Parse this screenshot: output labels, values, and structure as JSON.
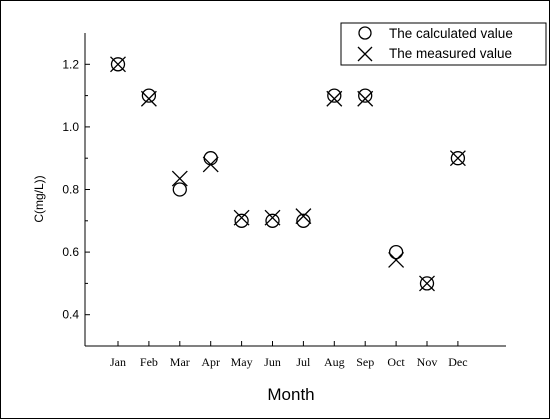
{
  "chart_data": {
    "type": "scatter",
    "xlabel": "Month",
    "ylabel": "C(mg/L))",
    "categories": [
      "Jan",
      "Feb",
      "Mar",
      "Apr",
      "May",
      "Jun",
      "Jul",
      "Aug",
      "Sep",
      "Oct",
      "Nov",
      "Dec"
    ],
    "ylim": [
      0.3,
      1.3
    ],
    "yticks": [
      0.4,
      0.6,
      0.8,
      1.0,
      1.2
    ],
    "ytick_labels": [
      "0.4",
      "0.6",
      "0.8",
      "1.0",
      "1.2"
    ],
    "grid": false,
    "legend_position": "top-right",
    "series": [
      {
        "name": "The calculated value",
        "marker": "circle",
        "values": [
          1.2,
          1.1,
          0.8,
          0.9,
          0.7,
          0.7,
          0.7,
          1.1,
          1.1,
          0.6,
          0.5,
          0.9
        ]
      },
      {
        "name": "The measured value",
        "marker": "cross",
        "values": [
          1.2,
          1.09,
          0.835,
          0.88,
          0.71,
          0.71,
          0.715,
          1.09,
          1.09,
          0.575,
          0.5,
          0.9
        ]
      }
    ],
    "color": "#000000"
  }
}
